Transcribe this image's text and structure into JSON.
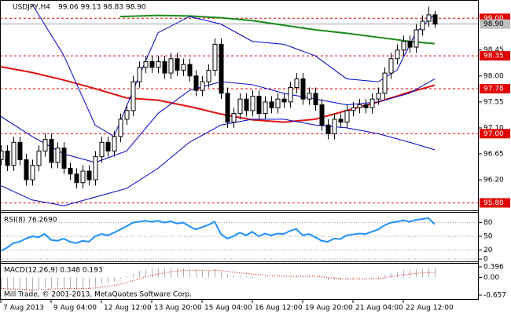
{
  "chart_data": {
    "type": "candlestick",
    "title": "USDJPY,H4",
    "ohlc_label": "99.06 99.13 98.83 98.90",
    "copyright": "Mill Trade, © 2001-2013, MetaQuotes Software Corp.",
    "categories": [
      "7 Aug 2013",
      null,
      null,
      null,
      null,
      null,
      null,
      null,
      "9 Aug 04:00",
      null,
      null,
      null,
      null,
      null,
      null,
      null,
      "12 Aug 12:00",
      null,
      null,
      null,
      null,
      null,
      null,
      null,
      "13 Aug 20:00",
      null,
      null,
      null,
      null,
      null,
      null,
      null,
      "15 Aug 04:00",
      null,
      null,
      null,
      null,
      null,
      null,
      null,
      "16 Aug 12:00",
      null,
      null,
      null,
      null,
      null,
      null,
      null,
      "19 Aug 20:00",
      null,
      null,
      null,
      null,
      null,
      null,
      null,
      "21 Aug 04:00",
      null,
      null,
      null,
      null,
      null,
      null,
      null,
      "22 Aug 12:00",
      null,
      null,
      null,
      null,
      null
    ],
    "open": [
      96.55,
      96.7,
      96.45,
      96.85,
      96.55,
      96.2,
      96.45,
      96.7,
      96.9,
      96.5,
      96.75,
      96.4,
      96.3,
      96.15,
      96.35,
      96.2,
      96.6,
      96.85,
      96.7,
      96.95,
      97.25,
      97.4,
      97.9,
      98.15,
      98.25,
      98.15,
      98.25,
      98.05,
      98.3,
      98.1,
      98.2,
      98.0,
      97.75,
      97.9,
      98.1,
      98.55,
      97.7,
      97.2,
      97.35,
      97.6,
      97.4,
      97.65,
      97.35,
      97.55,
      97.45,
      97.6,
      97.55,
      97.8,
      97.95,
      97.6,
      97.7,
      97.5,
      97.15,
      97.0,
      97.25,
      97.2,
      97.4,
      97.45,
      97.5,
      97.45,
      97.6,
      97.7,
      98.05,
      98.3,
      98.45,
      98.6,
      98.5,
      98.8,
      98.95,
      99.06
    ],
    "high": [
      96.8,
      96.8,
      96.95,
      96.95,
      96.65,
      96.55,
      96.8,
      97.0,
      97.0,
      96.85,
      96.85,
      96.5,
      96.4,
      96.45,
      96.45,
      96.7,
      96.95,
      96.95,
      97.05,
      97.35,
      97.5,
      98.0,
      98.25,
      98.35,
      98.35,
      98.35,
      98.35,
      98.4,
      98.4,
      98.3,
      98.3,
      98.1,
      98.0,
      98.2,
      98.65,
      98.65,
      97.8,
      97.45,
      97.7,
      97.7,
      97.75,
      97.75,
      97.65,
      97.65,
      97.7,
      97.7,
      97.9,
      98.05,
      98.05,
      97.8,
      97.8,
      97.6,
      97.25,
      97.35,
      97.35,
      97.5,
      97.55,
      97.6,
      97.6,
      97.7,
      97.8,
      98.15,
      98.4,
      98.55,
      98.7,
      98.7,
      98.9,
      99.05,
      99.2,
      99.13
    ],
    "low": [
      96.45,
      96.35,
      96.35,
      96.45,
      96.1,
      96.1,
      96.35,
      96.6,
      96.4,
      96.4,
      96.3,
      96.2,
      96.05,
      96.05,
      96.1,
      96.1,
      96.5,
      96.6,
      96.6,
      96.85,
      97.15,
      97.3,
      97.8,
      98.05,
      98.05,
      98.05,
      97.95,
      97.95,
      98.0,
      98.0,
      97.9,
      97.65,
      97.65,
      97.8,
      98.0,
      97.6,
      97.1,
      97.1,
      97.25,
      97.3,
      97.3,
      97.25,
      97.25,
      97.35,
      97.35,
      97.45,
      97.45,
      97.7,
      97.5,
      97.5,
      97.4,
      97.05,
      96.9,
      96.9,
      97.1,
      97.1,
      97.3,
      97.35,
      97.35,
      97.35,
      97.5,
      97.6,
      97.95,
      98.2,
      98.35,
      98.4,
      98.4,
      98.7,
      98.85,
      98.83
    ],
    "close": [
      96.7,
      96.45,
      96.85,
      96.55,
      96.2,
      96.45,
      96.7,
      96.9,
      96.5,
      96.75,
      96.4,
      96.3,
      96.15,
      96.35,
      96.2,
      96.6,
      96.85,
      96.7,
      96.95,
      97.25,
      97.4,
      97.9,
      98.15,
      98.25,
      98.15,
      98.25,
      98.05,
      98.3,
      98.1,
      98.2,
      98.0,
      97.75,
      97.9,
      98.1,
      98.55,
      97.7,
      97.2,
      97.35,
      97.6,
      97.4,
      97.65,
      97.35,
      97.55,
      97.45,
      97.6,
      97.55,
      97.8,
      97.95,
      97.6,
      97.7,
      97.5,
      97.15,
      97.0,
      97.25,
      97.2,
      97.4,
      97.45,
      97.5,
      97.45,
      97.6,
      97.7,
      98.05,
      98.3,
      98.45,
      98.6,
      98.5,
      98.8,
      98.95,
      99.06,
      98.9
    ],
    "ylim": [
      95.67,
      99.29
    ],
    "yticks": [
      98.45,
      {
        "value": 98,
        "label": "98.00"
      },
      97.55,
      {
        "value": 97.1,
        "label": "97.10"
      },
      96.65,
      {
        "value": 96.2,
        "label": "96.20"
      }
    ],
    "levels": [
      {
        "value": 99,
        "label": "99.00"
      },
      98.35,
      97.78,
      {
        "value": 97,
        "label": "97.00"
      },
      {
        "value": 95.8,
        "label": "95.80"
      }
    ],
    "level_color": "#e00000",
    "current_price": {
      "value": 98.9,
      "label": "98.90"
    },
    "lines": [
      {
        "color": "#e01010",
        "width": 2,
        "x": [
          0,
          5,
          10,
          15,
          20,
          25,
          30,
          35,
          40,
          45,
          50,
          55,
          60,
          65,
          69
        ],
        "values": [
          98.16,
          98.06,
          97.93,
          97.78,
          97.62,
          97.58,
          97.47,
          97.34,
          97.24,
          97.2,
          97.25,
          97.4,
          97.55,
          97.72,
          97.84
        ]
      },
      {
        "color": "#1a8a1a",
        "width": 2,
        "x": [
          19,
          25,
          30,
          35,
          40,
          45,
          50,
          55,
          60,
          65,
          69
        ],
        "values": [
          99.03,
          99.05,
          99.04,
          99.01,
          98.96,
          98.88,
          98.8,
          98.74,
          98.67,
          98.6,
          98.56
        ]
      },
      {
        "color": "#0000c8",
        "width": 1,
        "x": [
          5,
          10,
          15,
          18,
          22,
          25,
          30,
          35,
          40,
          45,
          50,
          55,
          60,
          63,
          66,
          69
        ],
        "values": [
          99.24,
          98.36,
          97.15,
          96.95,
          98.0,
          98.75,
          99.03,
          98.9,
          98.6,
          98.55,
          98.35,
          97.95,
          97.9,
          98.1,
          98.75,
          99.07
        ]
      },
      {
        "color": "#0000c8",
        "width": 1,
        "x": [
          0,
          5,
          10,
          15,
          20,
          25,
          30,
          35,
          40,
          45,
          50,
          55,
          60,
          65,
          69
        ],
        "values": [
          97.3,
          96.95,
          96.65,
          96.5,
          96.7,
          97.35,
          97.75,
          97.9,
          97.85,
          97.7,
          97.6,
          97.5,
          97.55,
          97.7,
          97.95
        ]
      },
      {
        "color": "#0000c8",
        "width": 1,
        "x": [
          0,
          5,
          10,
          15,
          20,
          25,
          30,
          35,
          40,
          45,
          50,
          55,
          60,
          65,
          69
        ],
        "values": [
          96.1,
          95.85,
          95.75,
          95.9,
          96.05,
          96.4,
          96.85,
          97.15,
          97.25,
          97.25,
          97.15,
          97.1,
          97.0,
          96.85,
          96.72
        ]
      }
    ],
    "rsi": {
      "label": "RSI(8) 76.2690",
      "color": "#1e90ff",
      "ylim": [
        0,
        100
      ],
      "yticks": [
        80,
        50,
        20,
        0
      ],
      "values": [
        18,
        25,
        35,
        38,
        45,
        50,
        48,
        55,
        42,
        40,
        45,
        38,
        35,
        40,
        38,
        50,
        55,
        52,
        58,
        65,
        72,
        80,
        82,
        84,
        82,
        84,
        80,
        83,
        78,
        80,
        72,
        65,
        70,
        75,
        82,
        55,
        45,
        50,
        58,
        52,
        60,
        50,
        56,
        52,
        56,
        55,
        62,
        66,
        52,
        55,
        48,
        40,
        38,
        45,
        44,
        52,
        54,
        56,
        55,
        60,
        65,
        74,
        80,
        82,
        85,
        82,
        86,
        88,
        90,
        76.269
      ]
    },
    "macd": {
      "label": "MACD(12,26,9) 0.348 0.193",
      "hist_color": "#b0b0b0",
      "signal_color": "#e00000",
      "ylim": [
        -0.774,
        0.513
      ],
      "yticks": [
        0.396,
        {
          "value": 0,
          "label": "0.00"
        },
        -0.657
      ],
      "values": [
        -0.45,
        -0.48,
        -0.45,
        -0.45,
        -0.5,
        -0.5,
        -0.45,
        -0.38,
        -0.4,
        -0.36,
        -0.38,
        -0.4,
        -0.42,
        -0.4,
        -0.4,
        -0.33,
        -0.25,
        -0.22,
        -0.15,
        -0.05,
        0.05,
        0.15,
        0.25,
        0.3,
        0.33,
        0.35,
        0.35,
        0.36,
        0.35,
        0.35,
        0.32,
        0.27,
        0.25,
        0.25,
        0.3,
        0.22,
        0.12,
        0.08,
        0.07,
        0.04,
        0.05,
        0.02,
        0.02,
        0.0,
        0.02,
        0.02,
        0.05,
        0.08,
        0.05,
        0.05,
        0.02,
        -0.04,
        -0.1,
        -0.1,
        -0.1,
        -0.08,
        -0.06,
        -0.04,
        -0.03,
        0.0,
        0.03,
        0.1,
        0.17,
        0.22,
        0.27,
        0.29,
        0.32,
        0.34,
        0.36,
        0.348
      ],
      "signal": [
        -0.4,
        -0.42,
        -0.43,
        -0.43,
        -0.45,
        -0.46,
        -0.46,
        -0.44,
        -0.43,
        -0.42,
        -0.41,
        -0.41,
        -0.41,
        -0.41,
        -0.41,
        -0.39,
        -0.36,
        -0.33,
        -0.3,
        -0.25,
        -0.19,
        -0.12,
        -0.05,
        0.02,
        0.08,
        0.13,
        0.17,
        0.21,
        0.24,
        0.26,
        0.27,
        0.27,
        0.27,
        0.27,
        0.27,
        0.26,
        0.23,
        0.2,
        0.17,
        0.15,
        0.13,
        0.11,
        0.09,
        0.07,
        0.06,
        0.05,
        0.05,
        0.05,
        0.05,
        0.05,
        0.05,
        0.03,
        0.0,
        -0.02,
        -0.04,
        -0.05,
        -0.05,
        -0.05,
        -0.05,
        -0.04,
        -0.03,
        -0.01,
        0.03,
        0.07,
        0.1,
        0.13,
        0.15,
        0.17,
        0.18,
        0.193
      ]
    }
  }
}
